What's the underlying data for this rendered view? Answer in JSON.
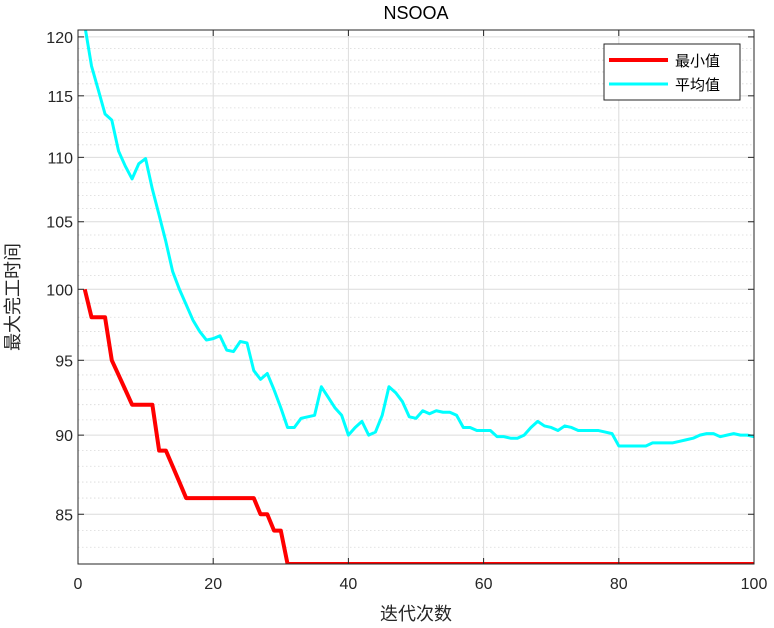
{
  "chart_data": {
    "type": "line",
    "title": "NSOOA",
    "xlabel": "迭代次数",
    "ylabel": "最大完工时间",
    "xlim": [
      0,
      100
    ],
    "ylim": [
      82.0,
      120.6
    ],
    "scale_y": "log",
    "x_ticks": [
      0,
      20,
      40,
      60,
      80,
      100
    ],
    "y_ticks": [
      85,
      90,
      95,
      100,
      105,
      110,
      115,
      120
    ],
    "grid": true,
    "minor_grid": true,
    "legend_position": "top-right",
    "series": [
      {
        "name": "最小值",
        "color": "#ff0000",
        "points": [
          [
            1,
            100
          ],
          [
            2,
            98
          ],
          [
            3,
            98
          ],
          [
            4,
            98
          ],
          [
            5,
            95
          ],
          [
            6,
            94
          ],
          [
            7,
            93
          ],
          [
            8,
            92
          ],
          [
            9,
            92
          ],
          [
            10,
            92
          ],
          [
            11,
            92
          ],
          [
            12,
            89
          ],
          [
            13,
            89
          ],
          [
            14,
            88
          ],
          [
            15,
            87
          ],
          [
            16,
            86
          ],
          [
            17,
            86
          ],
          [
            18,
            86
          ],
          [
            19,
            86
          ],
          [
            20,
            86
          ],
          [
            21,
            86
          ],
          [
            22,
            86
          ],
          [
            23,
            86
          ],
          [
            24,
            86
          ],
          [
            25,
            86
          ],
          [
            26,
            86
          ],
          [
            27,
            85
          ],
          [
            28,
            85
          ],
          [
            29,
            84
          ],
          [
            30,
            84
          ],
          [
            31,
            82
          ],
          [
            100,
            82
          ]
        ]
      },
      {
        "name": "平均值",
        "color": "#00ffff",
        "points": [
          [
            1,
            121
          ],
          [
            2,
            117.5
          ],
          [
            3,
            115.5
          ],
          [
            4,
            113.5
          ],
          [
            5,
            113
          ],
          [
            6,
            110.5
          ],
          [
            7,
            109.3
          ],
          [
            8,
            108.3
          ],
          [
            9,
            109.5
          ],
          [
            10,
            109.9
          ],
          [
            11,
            107.5
          ],
          [
            12,
            105.5
          ],
          [
            13,
            103.5
          ],
          [
            14,
            101.3
          ],
          [
            15,
            100
          ],
          [
            16,
            98.9
          ],
          [
            17,
            97.8
          ],
          [
            18,
            97
          ],
          [
            19,
            96.4
          ],
          [
            20,
            96.5
          ],
          [
            21,
            96.7
          ],
          [
            22,
            95.7
          ],
          [
            23,
            95.6
          ],
          [
            24,
            96.3
          ],
          [
            25,
            96.2
          ],
          [
            26,
            94.3
          ],
          [
            27,
            93.7
          ],
          [
            28,
            94.1
          ],
          [
            29,
            93
          ],
          [
            30,
            91.8
          ],
          [
            31,
            90.5
          ],
          [
            32,
            90.5
          ],
          [
            33,
            91.1
          ],
          [
            34,
            91.2
          ],
          [
            35,
            91.3
          ],
          [
            36,
            93.2
          ],
          [
            37,
            92.5
          ],
          [
            38,
            91.8
          ],
          [
            39,
            91.3
          ],
          [
            40,
            90
          ],
          [
            41,
            90.5
          ],
          [
            42,
            90.9
          ],
          [
            43,
            90
          ],
          [
            44,
            90.2
          ],
          [
            45,
            91.3
          ],
          [
            46,
            93.2
          ],
          [
            47,
            92.8
          ],
          [
            48,
            92.2
          ],
          [
            49,
            91.2
          ],
          [
            50,
            91.1
          ],
          [
            51,
            91.6
          ],
          [
            52,
            91.4
          ],
          [
            53,
            91.6
          ],
          [
            54,
            91.5
          ],
          [
            55,
            91.5
          ],
          [
            56,
            91.3
          ],
          [
            57,
            90.5
          ],
          [
            58,
            90.5
          ],
          [
            59,
            90.3
          ],
          [
            60,
            90.3
          ],
          [
            61,
            90.3
          ],
          [
            62,
            89.9
          ],
          [
            63,
            89.9
          ],
          [
            64,
            89.8
          ],
          [
            65,
            89.8
          ],
          [
            66,
            90
          ],
          [
            67,
            90.5
          ],
          [
            68,
            90.9
          ],
          [
            69,
            90.6
          ],
          [
            70,
            90.5
          ],
          [
            71,
            90.3
          ],
          [
            72,
            90.6
          ],
          [
            73,
            90.5
          ],
          [
            74,
            90.3
          ],
          [
            75,
            90.3
          ],
          [
            76,
            90.3
          ],
          [
            77,
            90.3
          ],
          [
            78,
            90.2
          ],
          [
            79,
            90.1
          ],
          [
            80,
            89.3
          ],
          [
            81,
            89.3
          ],
          [
            82,
            89.3
          ],
          [
            83,
            89.3
          ],
          [
            84,
            89.3
          ],
          [
            85,
            89.5
          ],
          [
            86,
            89.5
          ],
          [
            87,
            89.5
          ],
          [
            88,
            89.5
          ],
          [
            89,
            89.6
          ],
          [
            90,
            89.7
          ],
          [
            91,
            89.8
          ],
          [
            92,
            90
          ],
          [
            93,
            90.1
          ],
          [
            94,
            90.1
          ],
          [
            95,
            89.9
          ],
          [
            96,
            90
          ],
          [
            97,
            90.1
          ],
          [
            98,
            90
          ],
          [
            99,
            90
          ],
          [
            100,
            89.9
          ]
        ]
      }
    ]
  }
}
